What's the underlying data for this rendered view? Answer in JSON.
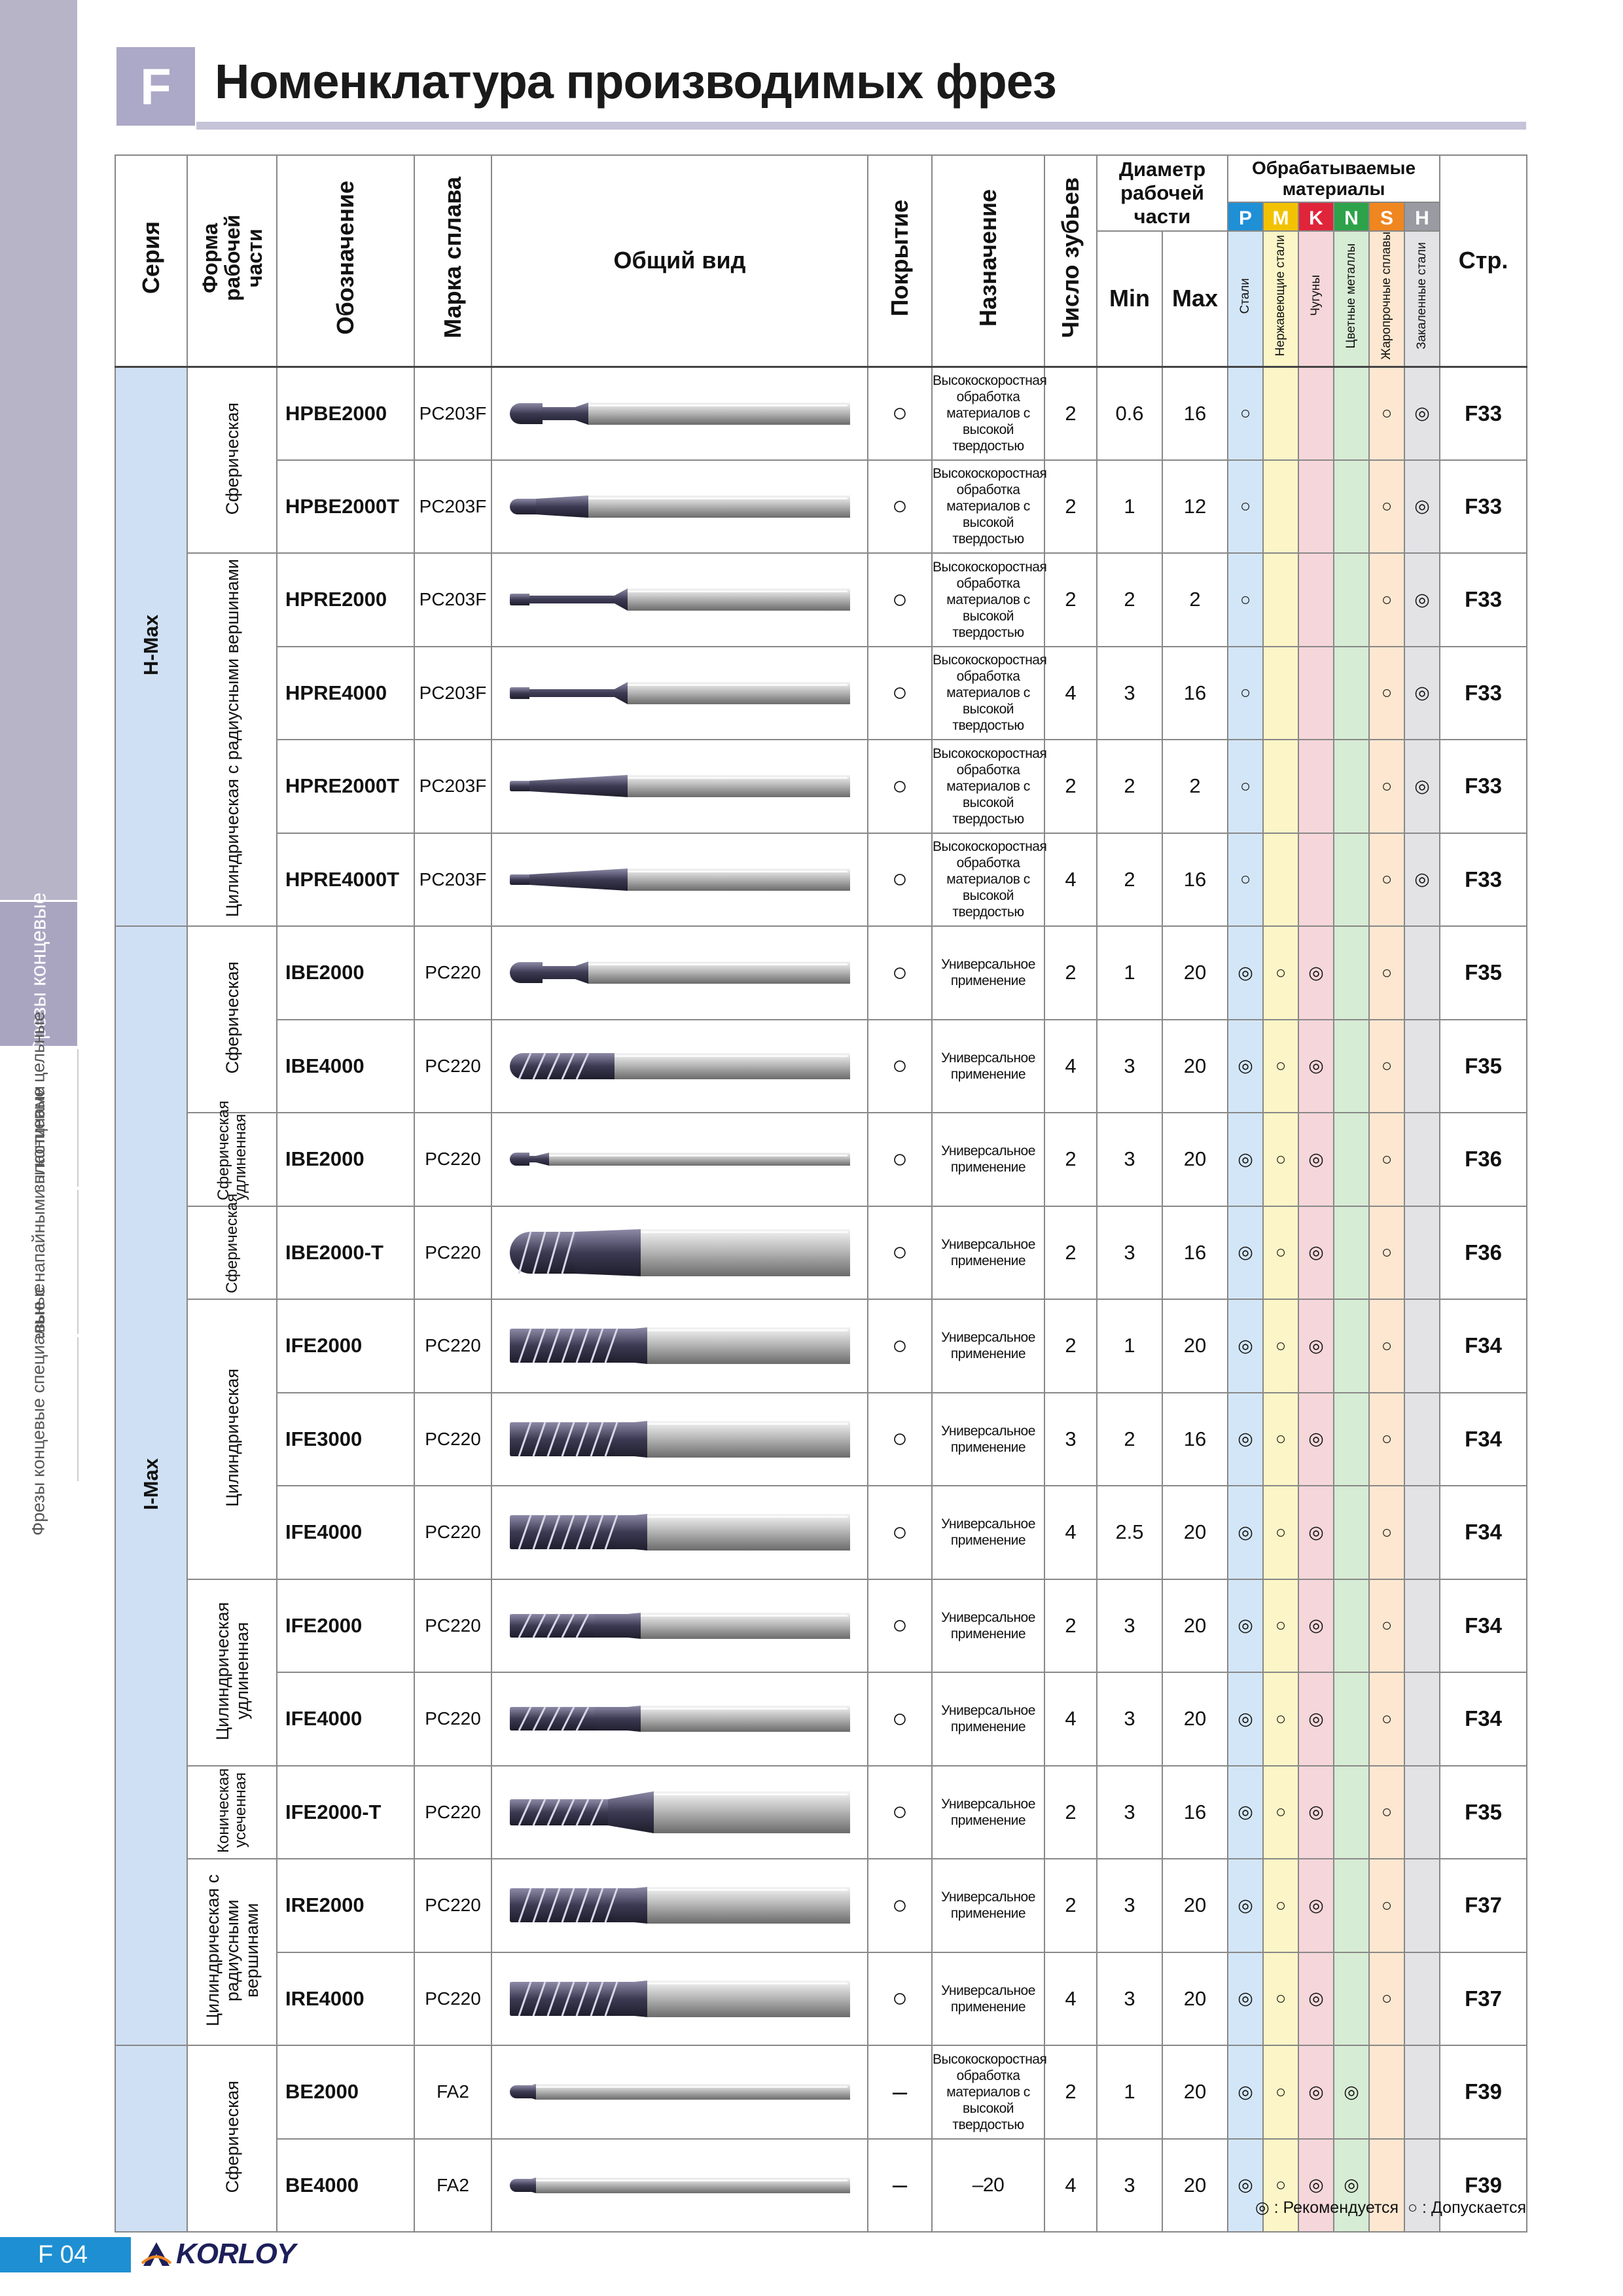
{
  "section_letter": "F",
  "page_title": "Номенклатура производимых фрез",
  "side_tabs": {
    "endmills": "Фрезы концевые",
    "solid": "Фрезы концевые цельные",
    "indexable": "Фрезы концевые с напайными пластинами",
    "special": "Фрезы концевые специальные"
  },
  "headers": {
    "series": "Серия",
    "shape": "Форма рабочей части",
    "designation": "Обозначение",
    "grade": "Марка сплава",
    "view": "Общий вид",
    "coating": "Покрытие",
    "purpose": "Назначение",
    "teeth": "Число зубьев",
    "diameter": "Диаметр рабочей части",
    "min": "Min",
    "max": "Max",
    "materials": "Обрабатываемые материалы",
    "page": "Стр."
  },
  "material_groups": [
    {
      "letter": "P",
      "name": "Стали",
      "color": "#1f8fd6"
    },
    {
      "letter": "M",
      "name": "Нержавеющие стали",
      "color": "#f2c200"
    },
    {
      "letter": "K",
      "name": "Чугуны",
      "color": "#e0243a"
    },
    {
      "letter": "N",
      "name": "Цветные металлы",
      "color": "#2ea24a"
    },
    {
      "letter": "S",
      "name": "Жаропрочные сплавы",
      "color": "#ef8620"
    },
    {
      "letter": "H",
      "name": "Закаленные стали",
      "color": "#9a9aa2"
    }
  ],
  "series": [
    {
      "name": "H-Max",
      "shapes": [
        {
          "name": "Сферическая",
          "rows": [
            {
              "code": "HPBE2000",
              "grade": "PC203F",
              "tool": "ball-neck",
              "coating": "○",
              "purpose": "Высокоскоростная обработка материалов с высокой твердостью",
              "teeth": "2",
              "min": "0.6",
              "max": "16",
              "mats": [
                "○",
                "",
                "",
                "",
                "○",
                "◎"
              ],
              "page": "F33"
            },
            {
              "code": "HPBE2000T",
              "grade": "PC203F",
              "tool": "ball-taper",
              "coating": "○",
              "purpose": "Высокоскоростная обработка материалов с высокой твердостью",
              "teeth": "2",
              "min": "1",
              "max": "12",
              "mats": [
                "○",
                "",
                "",
                "",
                "○",
                "◎"
              ],
              "page": "F33"
            }
          ]
        },
        {
          "name": "Цилиндрическая с радиусными вершинами",
          "rows": [
            {
              "code": "HPRE2000",
              "grade": "PC203F",
              "tool": "radius-neck",
              "coating": "○",
              "purpose": "Высокоскоростная обработка материалов с высокой твердостью",
              "teeth": "2",
              "min": "2",
              "max": "2",
              "mats": [
                "○",
                "",
                "",
                "",
                "○",
                "◎"
              ],
              "page": "F33"
            },
            {
              "code": "HPRE4000",
              "grade": "PC203F",
              "tool": "radius-neck",
              "coating": "○",
              "purpose": "Высокоскоростная обработка материалов с высокой твердостью",
              "teeth": "4",
              "min": "3",
              "max": "16",
              "mats": [
                "○",
                "",
                "",
                "",
                "○",
                "◎"
              ],
              "page": "F33"
            },
            {
              "code": "HPRE2000T",
              "grade": "PC203F",
              "tool": "radius-taper",
              "coating": "○",
              "purpose": "Высокоскоростная обработка материалов с высокой твердостью",
              "teeth": "2",
              "min": "2",
              "max": "2",
              "mats": [
                "○",
                "",
                "",
                "",
                "○",
                "◎"
              ],
              "page": "F33"
            },
            {
              "code": "HPRE4000T",
              "grade": "PC203F",
              "tool": "radius-taper",
              "coating": "○",
              "purpose": "Высокоскоростная обработка материалов с высокой твердостью",
              "teeth": "4",
              "min": "2",
              "max": "16",
              "mats": [
                "○",
                "",
                "",
                "",
                "○",
                "◎"
              ],
              "page": "F33"
            }
          ]
        }
      ]
    },
    {
      "name": "I-Max",
      "shapes": [
        {
          "name": "Сферическая",
          "rows": [
            {
              "code": "IBE2000",
              "grade": "PC220",
              "tool": "ball-neck",
              "coating": "○",
              "purpose": "Универсальное применение",
              "teeth": "2",
              "min": "1",
              "max": "20",
              "mats": [
                "◎",
                "○",
                "◎",
                "",
                "○",
                ""
              ],
              "page": "F35"
            },
            {
              "code": "IBE4000",
              "grade": "PC220",
              "tool": "ball-fluted",
              "coating": "○",
              "purpose": "Универсальное применение",
              "teeth": "4",
              "min": "3",
              "max": "20",
              "mats": [
                "◎",
                "○",
                "◎",
                "",
                "○",
                ""
              ],
              "page": "F35"
            }
          ]
        },
        {
          "name": "Сферическая удлиненная",
          "rows": [
            {
              "code": "IBE2000",
              "grade": "PC220",
              "tool": "ball-long",
              "coating": "○",
              "purpose": "Универсальное применение",
              "teeth": "2",
              "min": "3",
              "max": "20",
              "mats": [
                "◎",
                "○",
                "◎",
                "",
                "○",
                ""
              ],
              "page": "F36"
            }
          ]
        },
        {
          "name": "Сферическая",
          "rows": [
            {
              "code": "IBE2000-T",
              "grade": "PC220",
              "tool": "ball-fat",
              "coating": "○",
              "purpose": "Универсальное применение",
              "teeth": "2",
              "min": "3",
              "max": "16",
              "mats": [
                "◎",
                "○",
                "◎",
                "",
                "○",
                ""
              ],
              "page": "F36"
            }
          ]
        },
        {
          "name": "Цилиндрическая",
          "rows": [
            {
              "code": "IFE2000",
              "grade": "PC220",
              "tool": "flat-fluted",
              "coating": "○",
              "purpose": "Универсальное применение",
              "teeth": "2",
              "min": "1",
              "max": "20",
              "mats": [
                "◎",
                "○",
                "◎",
                "",
                "○",
                ""
              ],
              "page": "F34"
            },
            {
              "code": "IFE3000",
              "grade": "PC220",
              "tool": "flat-fluted",
              "coating": "○",
              "purpose": "Универсальное применение",
              "teeth": "3",
              "min": "2",
              "max": "16",
              "mats": [
                "◎",
                "○",
                "◎",
                "",
                "○",
                ""
              ],
              "page": "F34"
            },
            {
              "code": "IFE4000",
              "grade": "PC220",
              "tool": "flat-fluted",
              "coating": "○",
              "purpose": "Универсальное применение",
              "teeth": "4",
              "min": "2.5",
              "max": "20",
              "mats": [
                "◎",
                "○",
                "◎",
                "",
                "○",
                ""
              ],
              "page": "F34"
            }
          ]
        },
        {
          "name": "Цилиндрическая удлиненная",
          "rows": [
            {
              "code": "IFE2000",
              "grade": "PC220",
              "tool": "flat-long",
              "coating": "○",
              "purpose": "Универсальное применение",
              "teeth": "2",
              "min": "3",
              "max": "20",
              "mats": [
                "◎",
                "○",
                "◎",
                "",
                "○",
                ""
              ],
              "page": "F34"
            },
            {
              "code": "IFE4000",
              "grade": "PC220",
              "tool": "flat-long",
              "coating": "○",
              "purpose": "Универсальное применение",
              "teeth": "4",
              "min": "3",
              "max": "20",
              "mats": [
                "◎",
                "○",
                "◎",
                "",
                "○",
                ""
              ],
              "page": "F34"
            }
          ]
        },
        {
          "name": "Коническая усеченная",
          "rows": [
            {
              "code": "IFE2000-T",
              "grade": "PC220",
              "tool": "flat-taper",
              "coating": "○",
              "purpose": "Универсальное применение",
              "teeth": "2",
              "min": "3",
              "max": "16",
              "mats": [
                "◎",
                "○",
                "◎",
                "",
                "○",
                ""
              ],
              "page": "F35"
            }
          ]
        },
        {
          "name": "Цилиндрическая с радиусными вершинами",
          "rows": [
            {
              "code": "IRE2000",
              "grade": "PC220",
              "tool": "flat-fluted",
              "coating": "○",
              "purpose": "Универсальное применение",
              "teeth": "2",
              "min": "3",
              "max": "20",
              "mats": [
                "◎",
                "○",
                "◎",
                "",
                "○",
                ""
              ],
              "page": "F37"
            },
            {
              "code": "IRE4000",
              "grade": "PC220",
              "tool": "flat-fluted",
              "coating": "○",
              "purpose": "Универсальное применение",
              "teeth": "4",
              "min": "3",
              "max": "20",
              "mats": [
                "◎",
                "○",
                "◎",
                "",
                "○",
                ""
              ],
              "page": "F37"
            }
          ]
        }
      ]
    },
    {
      "name": "",
      "shapes": [
        {
          "name": "Сферическая",
          "rows": [
            {
              "code": "BE2000",
              "grade": "FA2",
              "tool": "ball-small",
              "coating": "–",
              "purpose": "Высокоскоростная обработка материалов с высокой твердостью",
              "teeth": "2",
              "min": "1",
              "max": "20",
              "mats": [
                "◎",
                "○",
                "◎",
                "◎",
                "",
                ""
              ],
              "page": "F39"
            },
            {
              "code": "BE4000",
              "grade": "FA2",
              "tool": "ball-small",
              "coating": "–",
              "purpose": "–20",
              "teeth": "4",
              "min": "3",
              "max": "20",
              "mats": [
                "◎",
                "○",
                "◎",
                "◎",
                "",
                ""
              ],
              "page": "F39"
            }
          ]
        }
      ]
    }
  ],
  "legend": {
    "recommended": "◎ : Рекомендуется",
    "allowed": "○ : Допускается"
  },
  "footer": {
    "page_number": "F 04",
    "brand": "KORLOY"
  }
}
